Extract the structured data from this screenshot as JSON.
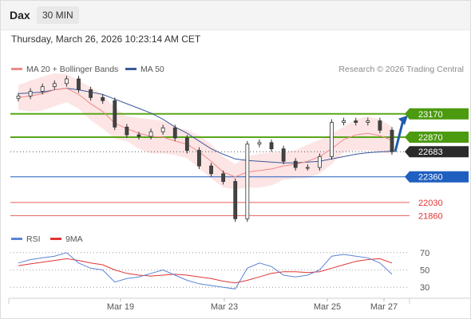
{
  "header": {
    "symbol": "Dax",
    "timeframe": "30 MIN"
  },
  "datetime": "Thursday, March 26, 2026 10:23:14 AM CET",
  "legend": {
    "ma20_label": "MA 20 + Bollinger Bands",
    "ma50_label": "MA 50",
    "rsi_label": "RSI",
    "rsi9_label": "9MA",
    "credit": "Research © 2026 Trading Central"
  },
  "colors": {
    "up_bg": "#4c9a10",
    "up_line": "#5aa61a",
    "support": "#1f5fbf",
    "current_bg": "#2a2a2a",
    "red": "#e03535",
    "ma20": "#f08a8a",
    "ma50": "#3a5a9a",
    "bands": "#fde0e0",
    "rsi": "#5b84d6",
    "rsi_ma": "#e03535",
    "arrow": "#1f5cad"
  },
  "chart_data": [
    {
      "type": "line",
      "subtype": "candlestick",
      "x_ticks": [
        "Mar 19",
        "Mar 23",
        "Mar 25",
        "Mar 27"
      ],
      "ylim": [
        21700,
        23650
      ],
      "levels": [
        {
          "value": 23170,
          "label": "23170",
          "kind": "resistance"
        },
        {
          "value": 22870,
          "label": "22870",
          "kind": "resistance"
        },
        {
          "value": 22683,
          "label": "22683",
          "kind": "current"
        },
        {
          "value": 22360,
          "label": "22360",
          "kind": "support"
        },
        {
          "value": 22030,
          "label": "22030",
          "kind": "minor"
        },
        {
          "value": 21860,
          "label": "21860",
          "kind": "minor"
        }
      ],
      "series": [
        {
          "name": "Dax",
          "values": [
            23400,
            23460,
            23520,
            23560,
            23620,
            23480,
            23380,
            23340,
            23000,
            22900,
            22880,
            22940,
            22990,
            22860,
            22700,
            22500,
            22400,
            22300,
            21820,
            22780,
            22800,
            22720,
            22560,
            22480,
            22480,
            22620,
            23060,
            23080,
            23060,
            23080,
            22960,
            22683
          ]
        },
        {
          "name": "MA 20",
          "values": [
            23380,
            23400,
            23430,
            23480,
            23500,
            23420,
            23300,
            23200,
            23050,
            22980,
            22920,
            22880,
            22870,
            22820,
            22780,
            22680,
            22560,
            22420,
            22360,
            22420,
            22440,
            22460,
            22500,
            22520,
            22560,
            22620,
            22720,
            22840,
            22900,
            22920,
            22890,
            22830
          ]
        },
        {
          "name": "MA 50",
          "values": [
            23430,
            23440,
            23450,
            23480,
            23500,
            23480,
            23450,
            23420,
            23360,
            23300,
            23240,
            23180,
            23100,
            23000,
            22920,
            22820,
            22720,
            22650,
            22590,
            22570,
            22560,
            22550,
            22540,
            22540,
            22550,
            22560,
            22590,
            22620,
            22650,
            22670,
            22680,
            22690
          ]
        }
      ]
    },
    {
      "type": "line",
      "ylim": [
        20,
        80
      ],
      "y_ticks": [
        70,
        50,
        30
      ],
      "series": [
        {
          "name": "RSI",
          "values": [
            58,
            62,
            64,
            66,
            70,
            58,
            52,
            50,
            36,
            40,
            42,
            46,
            50,
            44,
            38,
            34,
            32,
            30,
            28,
            52,
            58,
            54,
            44,
            42,
            44,
            50,
            66,
            68,
            66,
            64,
            58,
            45
          ]
        },
        {
          "name": "9MA",
          "values": [
            55,
            57,
            59,
            61,
            63,
            61,
            58,
            56,
            50,
            46,
            44,
            43,
            44,
            45,
            44,
            42,
            40,
            37,
            35,
            38,
            42,
            46,
            48,
            48,
            47,
            48,
            52,
            56,
            60,
            62,
            63,
            58
          ]
        }
      ]
    }
  ]
}
